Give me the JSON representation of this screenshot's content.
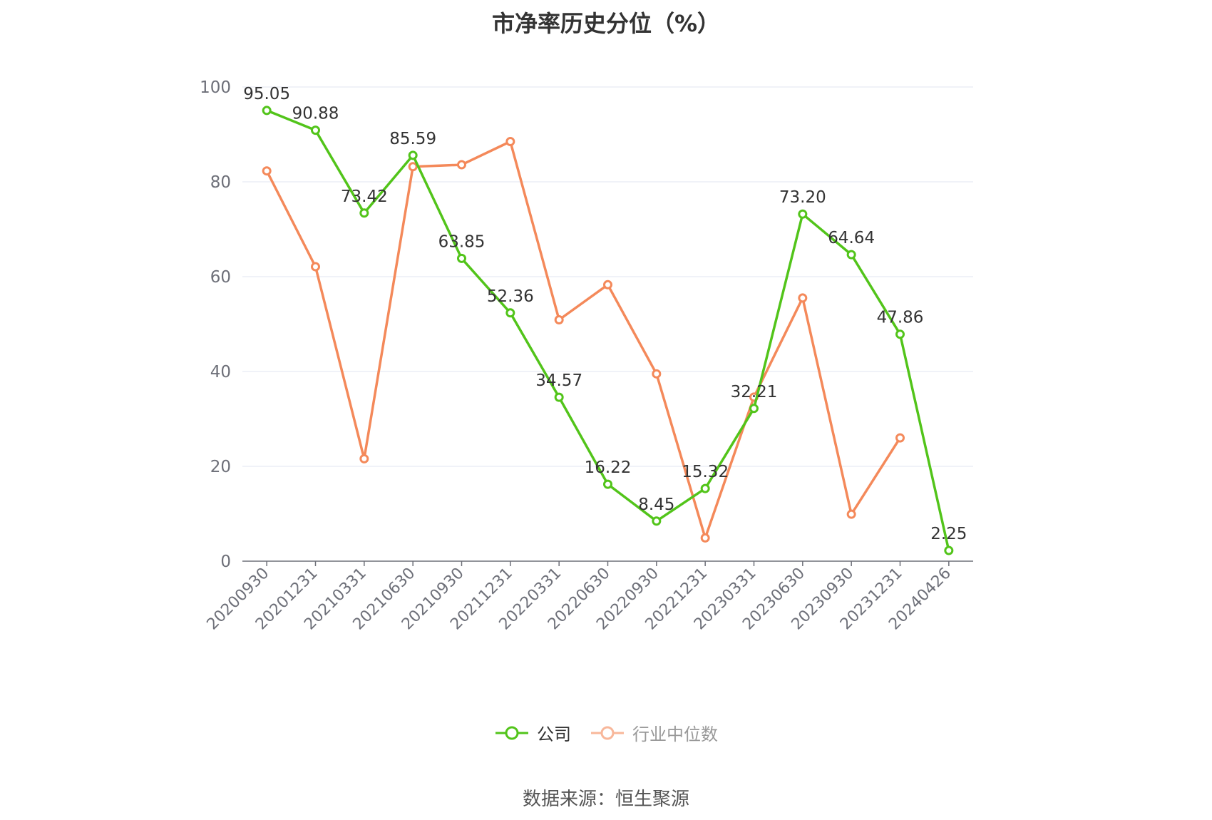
{
  "title": "市净率历史分位（%）",
  "source": "数据来源：恒生聚源",
  "chart_data": {
    "type": "line",
    "categories": [
      "20200930",
      "20201231",
      "20210331",
      "20210630",
      "20210930",
      "20211231",
      "20220331",
      "20220630",
      "20220930",
      "20221231",
      "20230331",
      "20230630",
      "20230930",
      "20231231",
      "20240426"
    ],
    "ylim": [
      0,
      100
    ],
    "yticks": [
      0,
      20,
      40,
      60,
      80,
      100
    ],
    "grid": true,
    "legend_position": "bottom",
    "series": [
      {
        "name": "公司",
        "color": "#52c41a",
        "labels": true,
        "values": [
          95.05,
          90.88,
          73.42,
          85.59,
          63.85,
          52.36,
          34.57,
          16.22,
          8.45,
          15.32,
          32.21,
          73.2,
          64.64,
          47.86,
          2.25
        ],
        "value_labels": [
          "95.05",
          "90.88",
          "73.42",
          "85.59",
          "63.85",
          "52.36",
          "34.57",
          "16.22",
          "8.45",
          "15.32",
          "32.21",
          "73.20",
          "64.64",
          "47.86",
          "2.25"
        ]
      },
      {
        "name": "行业中位数",
        "color": "#f4895a",
        "labels": false,
        "values": [
          82.3,
          62.1,
          21.6,
          83.2,
          83.6,
          88.5,
          50.9,
          58.3,
          39.5,
          4.9,
          34.6,
          55.5,
          9.9,
          26.0,
          null
        ]
      }
    ]
  }
}
